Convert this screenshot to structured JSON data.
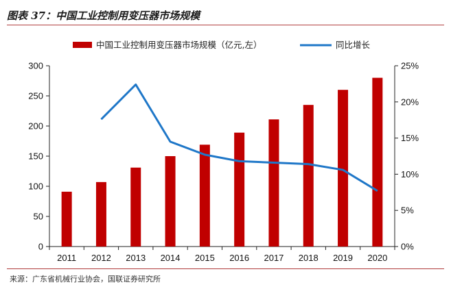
{
  "header": {
    "title": "图表 37：中国工业控制用变压器市场规模"
  },
  "footer": {
    "source": "来源：广东省机械行业协会，国联证券研究所"
  },
  "colors": {
    "bar": "#c00000",
    "line": "#1f77c8",
    "rule": "#b03a3a"
  },
  "chart_data": {
    "type": "bar",
    "title": "中国工业控制用变压器市场规模",
    "categories": [
      "2011",
      "2012",
      "2013",
      "2014",
      "2015",
      "2016",
      "2017",
      "2018",
      "2019",
      "2020"
    ],
    "series": [
      {
        "name": "中国工业控制用变压器市场规模（亿元，左）",
        "type": "bar",
        "axis": "left",
        "values": [
          91,
          107,
          131,
          150,
          169,
          189,
          211,
          235,
          260,
          280
        ]
      },
      {
        "name": "同比增长",
        "type": "line",
        "axis": "right",
        "values": [
          null,
          17.6,
          22.4,
          14.5,
          12.7,
          11.8,
          11.6,
          11.4,
          10.6,
          7.7
        ]
      }
    ],
    "left_axis": {
      "min": 0,
      "max": 300,
      "ticks": [
        "0",
        "50",
        "100",
        "150",
        "200",
        "250",
        "300"
      ]
    },
    "right_axis": {
      "min": 0,
      "max": 25,
      "ticks": [
        "0%",
        "5%",
        "10%",
        "15%",
        "20%",
        "25%"
      ]
    },
    "legend": [
      "中国工业控制用变压器市场规模（亿元,左）",
      "同比增长"
    ],
    "legend_position": "top"
  }
}
